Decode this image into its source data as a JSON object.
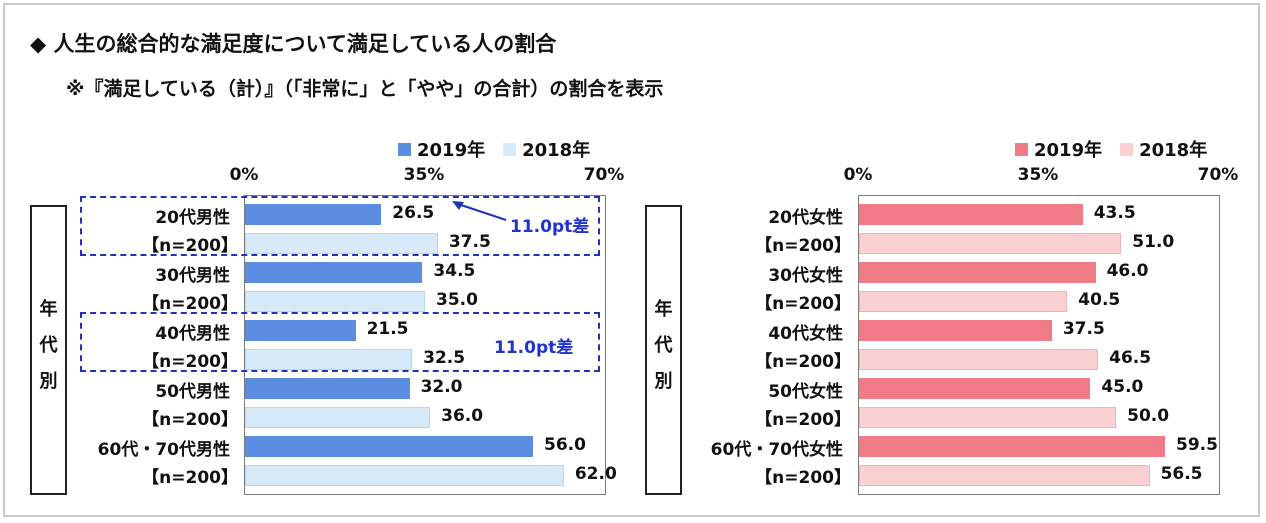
{
  "title": "◆ 人生の総合的な満足度について満足している人の割合",
  "subtitle": "※『満足している（計）』（「非常に」と「やや」の合計）の割合を表示",
  "colors": {
    "male_2019": "#5b8ee0",
    "male_2018": "#d6eafa",
    "female_2019": "#f07a85",
    "female_2018": "#fbd0d3",
    "annotation": "#2233cc"
  },
  "chart_data": [
    {
      "type": "bar",
      "orientation": "horizontal",
      "group_label": [
        "年",
        "代",
        "別"
      ],
      "xticks": [
        "0%",
        "35%",
        "70%"
      ],
      "xlim": [
        0,
        70
      ],
      "categories": [
        {
          "name": "20代男性",
          "n": "【n=200】"
        },
        {
          "name": "30代男性",
          "n": "【n=200】"
        },
        {
          "name": "40代男性",
          "n": "【n=200】"
        },
        {
          "name": "50代男性",
          "n": "【n=200】"
        },
        {
          "name": "60代・70代男性",
          "n": "【n=200】"
        }
      ],
      "series": [
        {
          "name": "2019年",
          "values": [
            26.5,
            34.5,
            21.5,
            32.0,
            56.0
          ],
          "labels": [
            "26.5",
            "34.5",
            "21.5",
            "32.0",
            "56.0"
          ]
        },
        {
          "name": "2018年",
          "values": [
            37.5,
            35.0,
            32.5,
            36.0,
            62.0
          ],
          "labels": [
            "37.5",
            "35.0",
            "32.5",
            "36.0",
            "62.0"
          ]
        }
      ],
      "annotations": [
        {
          "category": "20代男性",
          "text": "11.0pt差",
          "arrow": true
        },
        {
          "category": "40代男性",
          "text": "11.0pt差",
          "arrow": false
        }
      ]
    },
    {
      "type": "bar",
      "orientation": "horizontal",
      "group_label": [
        "年",
        "代",
        "別"
      ],
      "xticks": [
        "0%",
        "35%",
        "70%"
      ],
      "xlim": [
        0,
        70
      ],
      "categories": [
        {
          "name": "20代女性",
          "n": "【n=200】"
        },
        {
          "name": "30代女性",
          "n": "【n=200】"
        },
        {
          "name": "40代女性",
          "n": "【n=200】"
        },
        {
          "name": "50代女性",
          "n": "【n=200】"
        },
        {
          "name": "60代・70代女性",
          "n": "【n=200】"
        }
      ],
      "series": [
        {
          "name": "2019年",
          "values": [
            43.5,
            46.0,
            37.5,
            45.0,
            59.5
          ],
          "labels": [
            "43.5",
            "46.0",
            "37.5",
            "45.0",
            "59.5"
          ]
        },
        {
          "name": "2018年",
          "values": [
            51.0,
            40.5,
            46.5,
            50.0,
            56.5
          ],
          "labels": [
            "51.0",
            "40.5",
            "46.5",
            "50.0",
            "56.5"
          ]
        }
      ],
      "annotations": []
    }
  ]
}
